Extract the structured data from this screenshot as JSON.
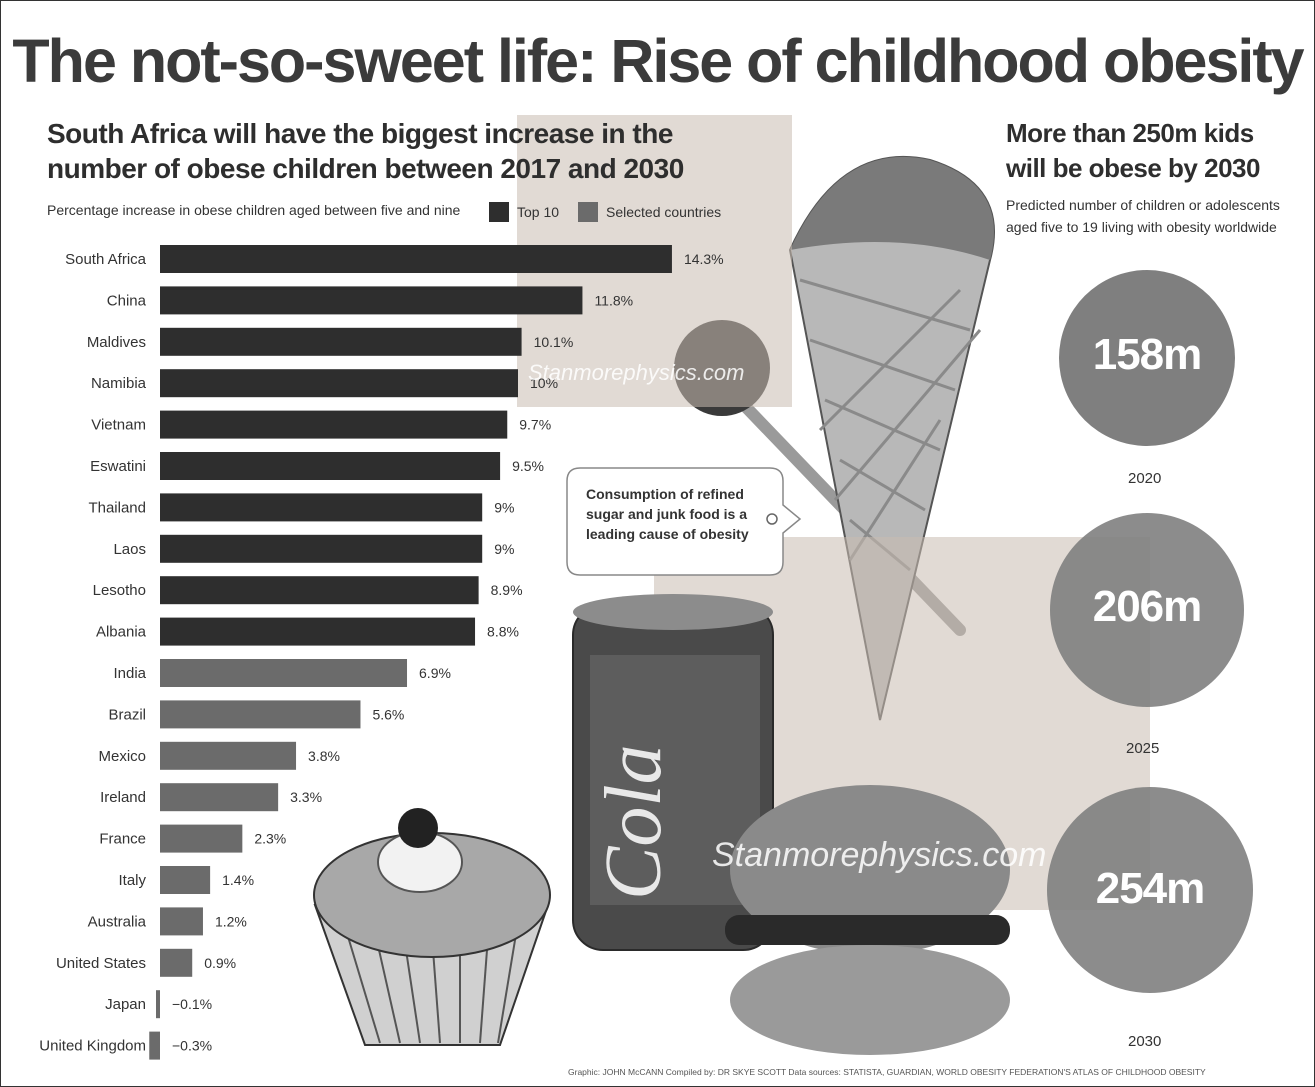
{
  "title": "The not-so-sweet life: Rise of childhood obesity",
  "left_panel": {
    "headline_line1": "South Africa will have the biggest increase in the",
    "headline_line2": "number of obese children between 2017 and 2030",
    "subtitle": "Percentage increase in obese children aged between five and nine",
    "legend": {
      "top10": "Top 10",
      "selected": "Selected countries"
    }
  },
  "right_panel": {
    "headline_line1": "More than 250m kids",
    "headline_line2": "will be obese by 2030",
    "sub_line1": "Predicted number of children or adolescents",
    "sub_line2": "aged five to 19 living with obesity worldwide",
    "circles": [
      {
        "value": "158m",
        "year": "2020"
      },
      {
        "value": "206m",
        "year": "2025"
      },
      {
        "value": "254m",
        "year": "2030"
      }
    ]
  },
  "callout": {
    "line1": "Consumption of refined",
    "line2": "sugar and junk food is a",
    "line3": "leading cause of obesity"
  },
  "artwork": {
    "can_text": "Cola"
  },
  "watermarks": [
    "Stanmorephysics.com",
    "Stanmorephysics.com"
  ],
  "credits": "Graphic: JOHN McCANN  Compiled by: DR SKYE SCOTT  Data sources: STATISTA, GUARDIAN, WORLD OBESITY FEDERATION'S ATLAS OF CHILDHOOD OBESITY",
  "colors": {
    "top10": "#2e2e2e",
    "selected": "#6b6b6b",
    "circle": "#7f7f7f"
  },
  "chart_data": {
    "type": "bar",
    "orientation": "horizontal",
    "title": "South Africa will have the biggest increase in the number of obese children between 2017 and 2030",
    "subtitle": "Percentage increase in obese children aged between five and nine",
    "categories": [
      "South Africa",
      "China",
      "Maldives",
      "Namibia",
      "Vietnam",
      "Eswatini",
      "Thailand",
      "Laos",
      "Lesotho",
      "Albania",
      "India",
      "Brazil",
      "Mexico",
      "Ireland",
      "France",
      "Italy",
      "Australia",
      "United States",
      "Japan",
      "United Kingdom"
    ],
    "values": [
      14.3,
      11.8,
      10.1,
      10,
      9.7,
      9.5,
      9,
      9,
      8.9,
      8.8,
      6.9,
      5.6,
      3.8,
      3.3,
      2.3,
      1.4,
      1.2,
      0.9,
      -0.1,
      -0.3
    ],
    "value_labels": [
      "14.3%",
      "11.8%",
      "10.1%",
      "10%",
      "9.7%",
      "9.5%",
      "9%",
      "9%",
      "8.9%",
      "8.8%",
      "6.9%",
      "5.6%",
      "3.8%",
      "3.3%",
      "2.3%",
      "1.4%",
      "1.2%",
      "0.9%",
      "−0.1%",
      "−0.3%"
    ],
    "groups": [
      "Top 10",
      "Top 10",
      "Top 10",
      "Top 10",
      "Top 10",
      "Top 10",
      "Top 10",
      "Top 10",
      "Top 10",
      "Top 10",
      "Selected countries",
      "Selected countries",
      "Selected countries",
      "Selected countries",
      "Selected countries",
      "Selected countries",
      "Selected countries",
      "Selected countries",
      "Selected countries",
      "Selected countries"
    ],
    "legend": [
      "Top 10",
      "Selected countries"
    ],
    "grid": false
  }
}
